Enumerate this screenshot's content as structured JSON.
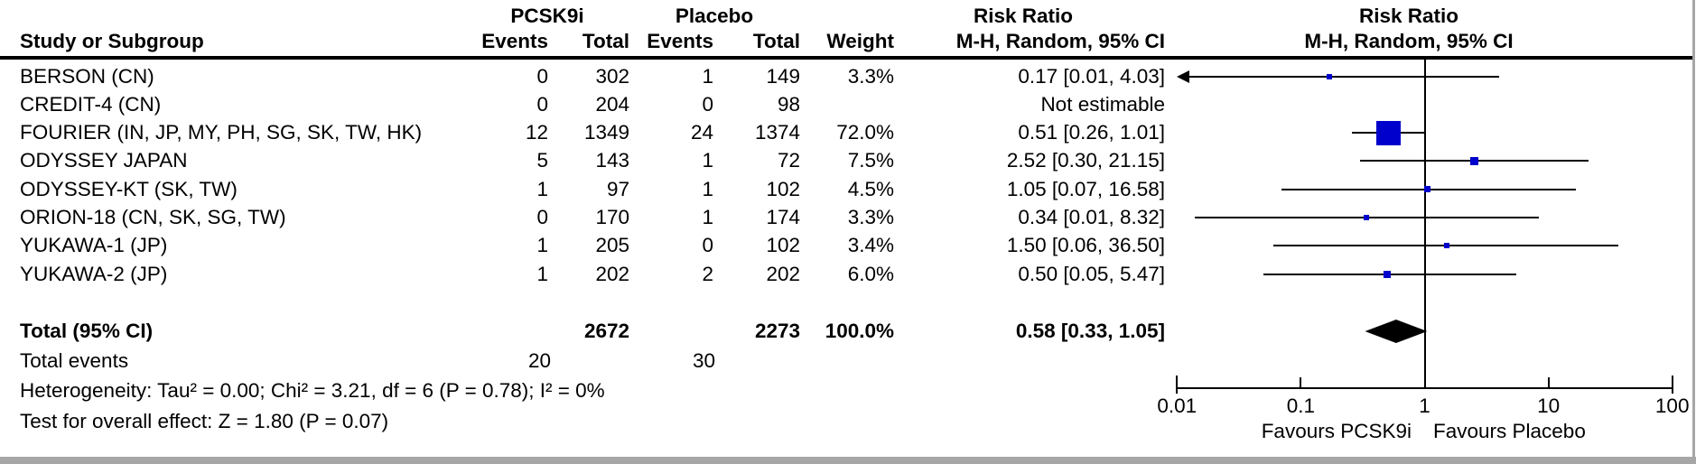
{
  "header": {
    "study_col": "Study or Subgroup",
    "group1": "PCSK9i",
    "group2": "Placebo",
    "events1": "Events",
    "total1": "Total",
    "events2": "Events",
    "total2": "Total",
    "weight": "Weight",
    "effect_title": "Risk Ratio",
    "effect_method": "M-H, Random, 95% CI",
    "plot_effect_title": "Risk Ratio",
    "plot_effect_method": "M-H, Random, 95% CI"
  },
  "studies": [
    {
      "name": "BERSON (CN)",
      "e1": "0",
      "t1": "302",
      "e2": "1",
      "t2": "149",
      "weight": "3.3%",
      "ci_text": "0.17 [0.01, 4.03]",
      "rr": 0.17,
      "lo": 0.01,
      "hi": 4.03,
      "w": 3.3,
      "arrow_left": true,
      "lo_draw": 0.012
    },
    {
      "name": "CREDIT-4 (CN)",
      "e1": "0",
      "t1": "204",
      "e2": "0",
      "t2": "98",
      "weight": "",
      "ci_text": "Not estimable",
      "rr": null,
      "lo": null,
      "hi": null,
      "w": null,
      "arrow_left": false,
      "lo_draw": null
    },
    {
      "name": "FOURIER (IN, JP, MY, PH, SG, SK, TW, HK)",
      "e1": "12",
      "t1": "1349",
      "e2": "24",
      "t2": "1374",
      "weight": "72.0%",
      "ci_text": "0.51 [0.26, 1.01]",
      "rr": 0.51,
      "lo": 0.26,
      "hi": 1.01,
      "w": 72.0,
      "arrow_left": false,
      "lo_draw": 0.26
    },
    {
      "name": "ODYSSEY JAPAN",
      "e1": "5",
      "t1": "143",
      "e2": "1",
      "t2": "72",
      "weight": "7.5%",
      "ci_text": "2.52 [0.30, 21.15]",
      "rr": 2.52,
      "lo": 0.3,
      "hi": 21.15,
      "w": 7.5,
      "arrow_left": false,
      "lo_draw": 0.3
    },
    {
      "name": "ODYSSEY-KT (SK, TW)",
      "e1": "1",
      "t1": "97",
      "e2": "1",
      "t2": "102",
      "weight": "4.5%",
      "ci_text": "1.05 [0.07, 16.58]",
      "rr": 1.05,
      "lo": 0.07,
      "hi": 16.58,
      "w": 4.5,
      "arrow_left": false,
      "lo_draw": 0.07
    },
    {
      "name": "ORION-18 (CN, SK, SG, TW)",
      "e1": "0",
      "t1": "170",
      "e2": "1",
      "t2": "174",
      "weight": "3.3%",
      "ci_text": "0.34 [0.01, 8.32]",
      "rr": 0.34,
      "lo": 0.01,
      "hi": 8.32,
      "w": 3.3,
      "arrow_left": false,
      "lo_draw": 0.014
    },
    {
      "name": "YUKAWA-1 (JP)",
      "e1": "1",
      "t1": "205",
      "e2": "0",
      "t2": "102",
      "weight": "3.4%",
      "ci_text": "1.50 [0.06, 36.50]",
      "rr": 1.5,
      "lo": 0.06,
      "hi": 36.5,
      "w": 3.4,
      "arrow_left": false,
      "lo_draw": 0.06
    },
    {
      "name": "YUKAWA-2 (JP)",
      "e1": "1",
      "t1": "202",
      "e2": "2",
      "t2": "202",
      "weight": "6.0%",
      "ci_text": "0.50 [0.05, 5.47]",
      "rr": 0.5,
      "lo": 0.05,
      "hi": 5.47,
      "w": 6.0,
      "arrow_left": false,
      "lo_draw": 0.05
    }
  ],
  "total": {
    "label": "Total (95% CI)",
    "t1": "2672",
    "t2": "2273",
    "weight": "100.0%",
    "ci_text": "0.58 [0.33, 1.05]",
    "rr": 0.58,
    "lo": 0.33,
    "hi": 1.05
  },
  "total_events": {
    "label": "Total events",
    "e1": "20",
    "e2": "30"
  },
  "heterogeneity": "Heterogeneity: Tau² = 0.00; Chi² = 3.21, df = 6 (P = 0.78); I² = 0%",
  "overall_effect": "Test for overall effect: Z = 1.80 (P = 0.07)",
  "axis": {
    "ticks": [
      "0.01",
      "0.1",
      "1",
      "10",
      "100"
    ],
    "favours_left": "Favours PCSK9i",
    "favours_right": "Favours Placebo"
  },
  "colors": {
    "square_blue": "#0000CC",
    "line_black": "#000000",
    "diamond_black": "#000000",
    "border_gray": "#a6a6a6"
  },
  "chart_data": {
    "type": "scatter",
    "subtype": "forest-plot-meta-analysis",
    "title": "Risk Ratio, M-H, Random, 95% CI",
    "x_scale": "log10",
    "x_ticks": [
      0.01,
      0.1,
      1,
      10,
      100
    ],
    "xlim": [
      0.01,
      100
    ],
    "xlabel_left_of_1": "Favours PCSK9i",
    "xlabel_right_of_1": "Favours Placebo",
    "series": [
      {
        "name": "BERSON (CN)",
        "risk_ratio": 0.17,
        "ci95": [
          0.01,
          4.03
        ],
        "weight_pct": 3.3,
        "pcsk9i_events": 0,
        "pcsk9i_total": 302,
        "placebo_events": 1,
        "placebo_total": 149,
        "ci_lower_off_scale": true
      },
      {
        "name": "CREDIT-4 (CN)",
        "risk_ratio": null,
        "ci95": null,
        "weight_pct": null,
        "pcsk9i_events": 0,
        "pcsk9i_total": 204,
        "placebo_events": 0,
        "placebo_total": 98,
        "note": "Not estimable"
      },
      {
        "name": "FOURIER (IN, JP, MY, PH, SG, SK, TW, HK)",
        "risk_ratio": 0.51,
        "ci95": [
          0.26,
          1.01
        ],
        "weight_pct": 72.0,
        "pcsk9i_events": 12,
        "pcsk9i_total": 1349,
        "placebo_events": 24,
        "placebo_total": 1374
      },
      {
        "name": "ODYSSEY JAPAN",
        "risk_ratio": 2.52,
        "ci95": [
          0.3,
          21.15
        ],
        "weight_pct": 7.5,
        "pcsk9i_events": 5,
        "pcsk9i_total": 143,
        "placebo_events": 1,
        "placebo_total": 72
      },
      {
        "name": "ODYSSEY-KT (SK, TW)",
        "risk_ratio": 1.05,
        "ci95": [
          0.07,
          16.58
        ],
        "weight_pct": 4.5,
        "pcsk9i_events": 1,
        "pcsk9i_total": 97,
        "placebo_events": 1,
        "placebo_total": 102
      },
      {
        "name": "ORION-18 (CN, SK, SG, TW)",
        "risk_ratio": 0.34,
        "ci95": [
          0.01,
          8.32
        ],
        "weight_pct": 3.3,
        "pcsk9i_events": 0,
        "pcsk9i_total": 170,
        "placebo_events": 1,
        "placebo_total": 174
      },
      {
        "name": "YUKAWA-1 (JP)",
        "risk_ratio": 1.5,
        "ci95": [
          0.06,
          36.5
        ],
        "weight_pct": 3.4,
        "pcsk9i_events": 1,
        "pcsk9i_total": 205,
        "placebo_events": 0,
        "placebo_total": 102
      },
      {
        "name": "YUKAWA-2 (JP)",
        "risk_ratio": 0.5,
        "ci95": [
          0.05,
          5.47
        ],
        "weight_pct": 6.0,
        "pcsk9i_events": 1,
        "pcsk9i_total": 202,
        "placebo_events": 2,
        "placebo_total": 202
      }
    ],
    "total": {
      "label": "Total (95% CI)",
      "risk_ratio": 0.58,
      "ci95": [
        0.33,
        1.05
      ],
      "weight_pct": 100.0,
      "pcsk9i_total": 2672,
      "placebo_total": 2273,
      "pcsk9i_events": 20,
      "placebo_events": 30
    },
    "heterogeneity": {
      "tau2": 0.0,
      "chi2": 3.21,
      "df": 6,
      "p": 0.78,
      "i2_pct": 0
    },
    "overall_effect": {
      "z": 1.8,
      "p": 0.07
    }
  }
}
